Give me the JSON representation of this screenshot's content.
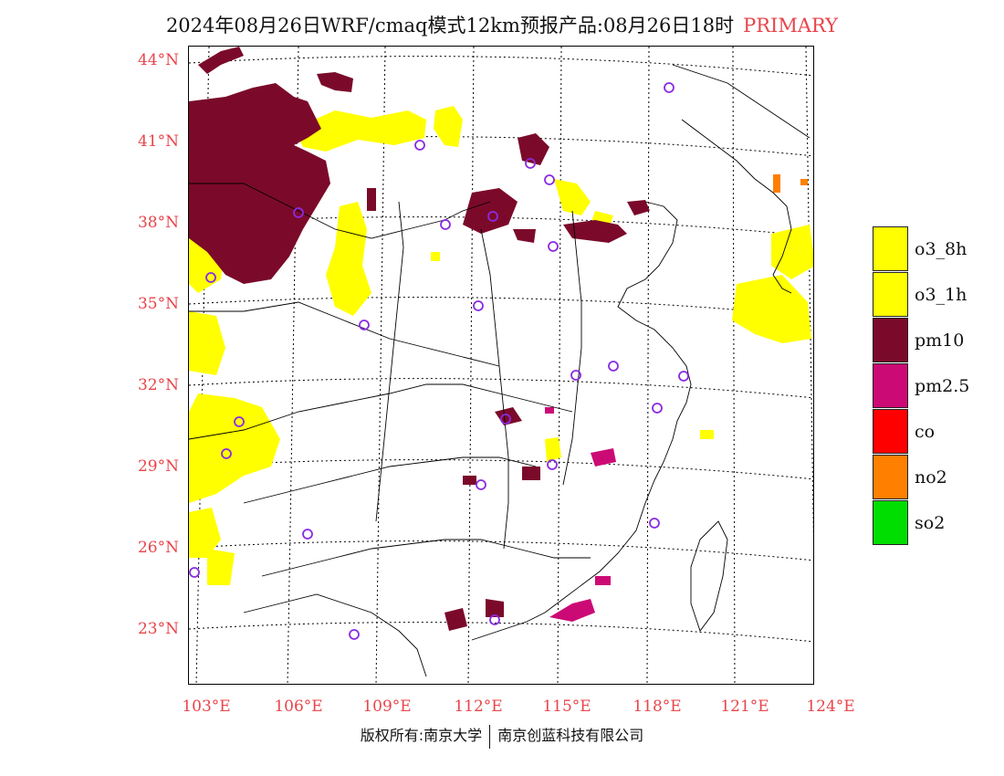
{
  "header": {
    "title": "2024年08月26日WRF/cmaq模式12km预报产品:08月26日18时",
    "tag": "PRIMARY"
  },
  "axes": {
    "lat_labels": [
      "44°N",
      "41°N",
      "38°N",
      "35°N",
      "32°N",
      "29°N",
      "26°N",
      "23°N"
    ],
    "lon_labels": [
      "103°E",
      "106°E",
      "109°E",
      "112°E",
      "115°E",
      "118°E",
      "121°E",
      "124°E"
    ]
  },
  "legend": [
    {
      "label": "o3_8h",
      "color": "#ffff00"
    },
    {
      "label": "o3_1h",
      "color": "#ffff00"
    },
    {
      "label": "pm10",
      "color": "#7b0a2a"
    },
    {
      "label": "pm2.5",
      "color": "#cc0a75"
    },
    {
      "label": "co",
      "color": "#ff0000"
    },
    {
      "label": "no2",
      "color": "#ff7f00"
    },
    {
      "label": "so2",
      "color": "#00dd00"
    }
  ],
  "footer": {
    "left": "版权所有:南京大学",
    "right": "南京创蓝科技有限公司"
  }
}
